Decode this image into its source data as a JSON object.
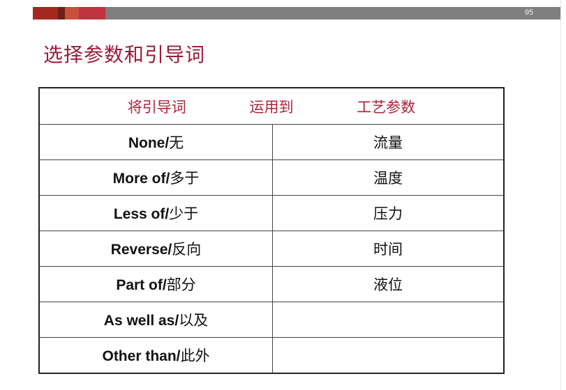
{
  "slide": {
    "page_number": "95",
    "title": "选择参数和引导词",
    "bar_colors": [
      "#a3281f",
      "#6e1e17",
      "#c9503a",
      "#bf3440",
      "#7f7f7f"
    ]
  },
  "table": {
    "header": [
      "将引导词",
      "运用到",
      "工艺参数"
    ],
    "rows": [
      {
        "en": "None/",
        "cn": "无",
        "param": "流量"
      },
      {
        "en": "More of/",
        "cn": "多于",
        "param": "温度"
      },
      {
        "en": "Less of/",
        "cn": "少于",
        "param": "压力"
      },
      {
        "en": "Reverse/",
        "cn": "反向",
        "param": "时间"
      },
      {
        "en": "Part of/",
        "cn": "部分",
        "param": "液位"
      },
      {
        "en": "As well as/",
        "cn": "以及",
        "param": ""
      },
      {
        "en": "Other than/",
        "cn": "此外",
        "param": ""
      }
    ]
  }
}
